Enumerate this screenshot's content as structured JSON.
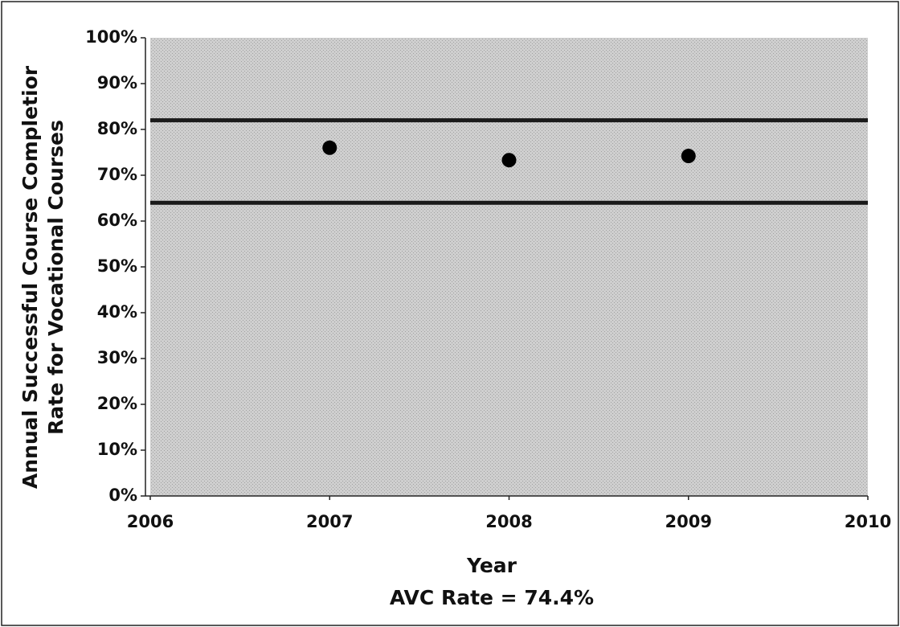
{
  "chart_data": {
    "type": "scatter",
    "x_label": "Year",
    "y_label": [
      "Annual Successful Course Completior",
      "Rate for Vocational Courses"
    ],
    "annotation": "AVC Rate = 74.4%",
    "x": [
      2007,
      2008,
      2009
    ],
    "values": [
      76,
      73.3,
      74.2
    ],
    "color": "#000000",
    "hlines": [
      82,
      64
    ],
    "hline_color": "#1a1a1a",
    "plot_background": "#c4c4c4",
    "xlim": [
      2006,
      2010
    ],
    "xticks": [
      2006,
      2007,
      2008,
      2009,
      2010
    ],
    "ylim": [
      0,
      100
    ],
    "yticks": [
      {
        "value": 0,
        "label": "0%"
      },
      {
        "value": 10,
        "label": "10%"
      },
      {
        "value": 20,
        "label": "20%"
      },
      {
        "value": 30,
        "label": "30%"
      },
      {
        "value": 40,
        "label": "40%"
      },
      {
        "value": 50,
        "label": "50%"
      },
      {
        "value": 60,
        "label": "60%"
      },
      {
        "value": 70,
        "label": "70%"
      },
      {
        "value": 80,
        "label": "80%"
      },
      {
        "value": 90,
        "label": "90%"
      },
      {
        "value": 100,
        "label": "100%"
      }
    ]
  }
}
